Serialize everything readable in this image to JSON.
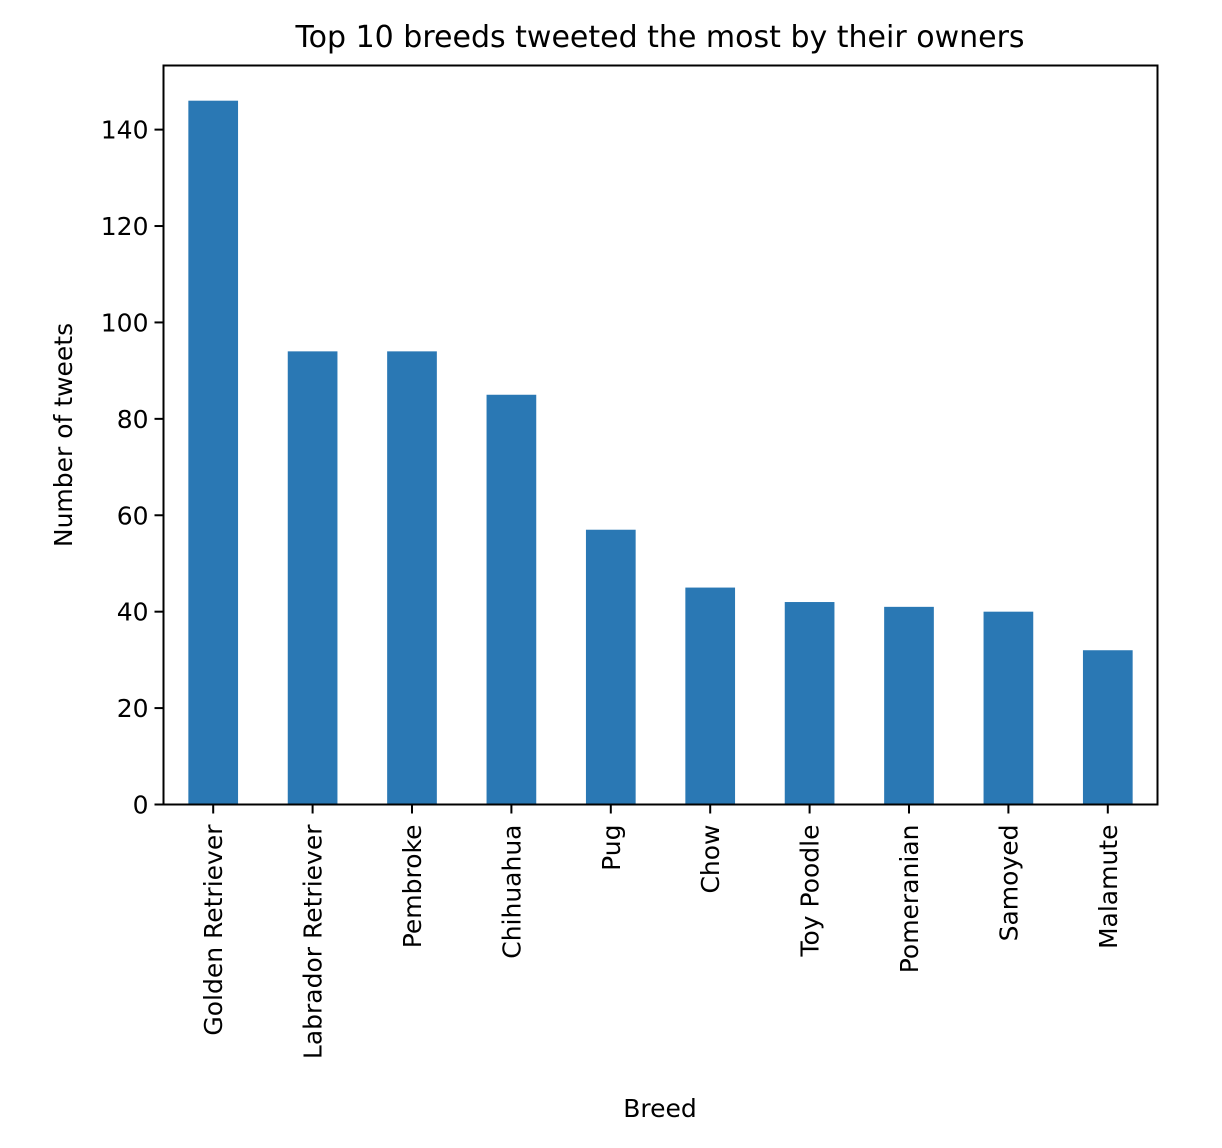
{
  "chart_data": {
    "type": "bar",
    "title": "Top 10 breeds tweeted the most by their owners",
    "xlabel": "Breed",
    "ylabel": "Number of tweets",
    "categories": [
      "Golden Retriever",
      "Labrador Retriever",
      "Pembroke",
      "Chihuahua",
      "Pug",
      "Chow",
      "Toy Poodle",
      "Pomeranian",
      "Samoyed",
      "Malamute"
    ],
    "values": [
      146,
      94,
      94,
      85,
      57,
      45,
      42,
      41,
      40,
      32
    ],
    "ylim": [
      0,
      153.3
    ],
    "yticks": [
      0,
      20,
      40,
      60,
      80,
      100,
      120,
      140
    ],
    "grid": false,
    "legend": false,
    "bar_color": "#2a78b4"
  }
}
